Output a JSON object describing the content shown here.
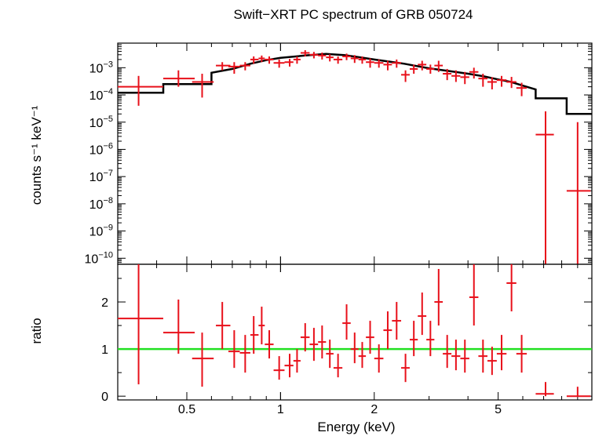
{
  "chart_data": {
    "title": "Swift−XRT PC spectrum of GRB 050724",
    "x_axis": {
      "label": "Energy (keV)",
      "scale": "log",
      "range": [
        0.3,
        10.0
      ],
      "ticks": [
        {
          "value": 0.5,
          "label": "0.5"
        },
        {
          "value": 1,
          "label": "1"
        },
        {
          "value": 2,
          "label": "2"
        },
        {
          "value": 5,
          "label": "5"
        }
      ]
    },
    "panels": [
      {
        "id": "spectrum",
        "type": "scatter",
        "ylabel": "counts s⁻¹ keV⁻¹",
        "yscale": "log",
        "ylim": [
          6e-11,
          0.008
        ],
        "yticks": [
          {
            "value": 0.001,
            "base": "10",
            "exp": "−3"
          },
          {
            "value": 0.0001,
            "base": "10",
            "exp": "−4"
          },
          {
            "value": 1e-05,
            "base": "10",
            "exp": "−5"
          },
          {
            "value": 1e-06,
            "base": "10",
            "exp": "−6"
          },
          {
            "value": 1e-07,
            "base": "10",
            "exp": "−7"
          },
          {
            "value": 1e-08,
            "base": "10",
            "exp": "−8"
          },
          {
            "value": 1e-09,
            "base": "10",
            "exp": "−9"
          },
          {
            "value": 1e-10,
            "base": "10",
            "exp": "−10"
          }
        ],
        "data_color": "#e8101a",
        "model_color": "#000000",
        "data": [
          {
            "x": 0.35,
            "xlo": 0.3,
            "xhi": 0.42,
            "y": 0.0002,
            "ylo": 4e-05,
            "yhi": 0.0005
          },
          {
            "x": 0.47,
            "xlo": 0.42,
            "xhi": 0.53,
            "y": 0.0004,
            "ylo": 0.0002,
            "yhi": 0.0008
          },
          {
            "x": 0.56,
            "xlo": 0.52,
            "xhi": 0.61,
            "y": 0.0003,
            "ylo": 8e-05,
            "yhi": 0.0006
          },
          {
            "x": 0.65,
            "xlo": 0.62,
            "xhi": 0.69,
            "y": 0.0012,
            "ylo": 0.0008,
            "yhi": 0.0016
          },
          {
            "x": 0.71,
            "xlo": 0.68,
            "xhi": 0.74,
            "y": 0.0011,
            "ylo": 0.0006,
            "yhi": 0.0016
          },
          {
            "x": 0.77,
            "xlo": 0.74,
            "xhi": 0.8,
            "y": 0.0012,
            "ylo": 0.0008,
            "yhi": 0.0016
          },
          {
            "x": 0.82,
            "xlo": 0.8,
            "xhi": 0.85,
            "y": 0.002,
            "ylo": 0.0014,
            "yhi": 0.0026
          },
          {
            "x": 0.87,
            "xlo": 0.85,
            "xhi": 0.89,
            "y": 0.0022,
            "ylo": 0.0016,
            "yhi": 0.0028
          },
          {
            "x": 0.92,
            "xlo": 0.89,
            "xhi": 0.95,
            "y": 0.002,
            "ylo": 0.0014,
            "yhi": 0.0026
          },
          {
            "x": 0.99,
            "xlo": 0.95,
            "xhi": 1.03,
            "y": 0.0015,
            "ylo": 0.001,
            "yhi": 0.002
          },
          {
            "x": 1.07,
            "xlo": 1.03,
            "xhi": 1.1,
            "y": 0.0016,
            "ylo": 0.0011,
            "yhi": 0.0021
          },
          {
            "x": 1.13,
            "xlo": 1.1,
            "xhi": 1.16,
            "y": 0.002,
            "ylo": 0.0014,
            "yhi": 0.0026
          },
          {
            "x": 1.2,
            "xlo": 1.16,
            "xhi": 1.24,
            "y": 0.0035,
            "ylo": 0.0026,
            "yhi": 0.0044
          },
          {
            "x": 1.28,
            "xlo": 1.24,
            "xhi": 1.32,
            "y": 0.003,
            "ylo": 0.0022,
            "yhi": 0.0038
          },
          {
            "x": 1.36,
            "xlo": 1.32,
            "xhi": 1.4,
            "y": 0.0028,
            "ylo": 0.002,
            "yhi": 0.0036
          },
          {
            "x": 1.44,
            "xlo": 1.4,
            "xhi": 1.48,
            "y": 0.0024,
            "ylo": 0.0017,
            "yhi": 0.0031
          },
          {
            "x": 1.53,
            "xlo": 1.48,
            "xhi": 1.58,
            "y": 0.002,
            "ylo": 0.0014,
            "yhi": 0.0026
          },
          {
            "x": 1.63,
            "xlo": 1.58,
            "xhi": 1.68,
            "y": 0.0026,
            "ylo": 0.0019,
            "yhi": 0.0033
          },
          {
            "x": 1.73,
            "xlo": 1.68,
            "xhi": 1.78,
            "y": 0.0022,
            "ylo": 0.0015,
            "yhi": 0.0029
          },
          {
            "x": 1.83,
            "xlo": 1.78,
            "xhi": 1.88,
            "y": 0.002,
            "ylo": 0.0014,
            "yhi": 0.0026
          },
          {
            "x": 1.94,
            "xlo": 1.88,
            "xhi": 2.0,
            "y": 0.0016,
            "ylo": 0.001,
            "yhi": 0.0022
          },
          {
            "x": 2.07,
            "xlo": 2.0,
            "xhi": 2.14,
            "y": 0.0015,
            "ylo": 0.001,
            "yhi": 0.002
          },
          {
            "x": 2.21,
            "xlo": 2.14,
            "xhi": 2.28,
            "y": 0.0013,
            "ylo": 0.0008,
            "yhi": 0.0018
          },
          {
            "x": 2.36,
            "xlo": 2.28,
            "xhi": 2.44,
            "y": 0.0015,
            "ylo": 0.001,
            "yhi": 0.002
          },
          {
            "x": 2.52,
            "xlo": 2.44,
            "xhi": 2.6,
            "y": 0.00055,
            "ylo": 0.0003,
            "yhi": 0.0008
          },
          {
            "x": 2.68,
            "xlo": 2.6,
            "xhi": 2.76,
            "y": 0.0009,
            "ylo": 0.0006,
            "yhi": 0.0013
          },
          {
            "x": 2.85,
            "xlo": 2.76,
            "xhi": 2.94,
            "y": 0.0013,
            "ylo": 0.0008,
            "yhi": 0.0018
          },
          {
            "x": 3.03,
            "xlo": 2.94,
            "xhi": 3.12,
            "y": 0.0009,
            "ylo": 0.0006,
            "yhi": 0.0013
          },
          {
            "x": 3.22,
            "xlo": 3.12,
            "xhi": 3.32,
            "y": 0.0012,
            "ylo": 0.0007,
            "yhi": 0.0018
          },
          {
            "x": 3.43,
            "xlo": 3.32,
            "xhi": 3.54,
            "y": 0.0006,
            "ylo": 0.00035,
            "yhi": 0.0009
          },
          {
            "x": 3.66,
            "xlo": 3.54,
            "xhi": 3.78,
            "y": 0.0005,
            "ylo": 0.0003,
            "yhi": 0.0008
          },
          {
            "x": 3.91,
            "xlo": 3.78,
            "xhi": 4.04,
            "y": 0.00045,
            "ylo": 0.00025,
            "yhi": 0.0007
          },
          {
            "x": 4.18,
            "xlo": 4.04,
            "xhi": 4.32,
            "y": 0.0007,
            "ylo": 0.0004,
            "yhi": 0.001
          },
          {
            "x": 4.47,
            "xlo": 4.32,
            "xhi": 4.62,
            "y": 0.0004,
            "ylo": 0.0002,
            "yhi": 0.0006
          },
          {
            "x": 4.78,
            "xlo": 4.62,
            "xhi": 4.95,
            "y": 0.0003,
            "ylo": 0.00016,
            "yhi": 0.00045
          },
          {
            "x": 5.13,
            "xlo": 4.95,
            "xhi": 5.32,
            "y": 0.00035,
            "ylo": 0.0002,
            "yhi": 0.0005
          },
          {
            "x": 5.52,
            "xlo": 5.32,
            "xhi": 5.72,
            "y": 0.0003,
            "ylo": 0.00018,
            "yhi": 0.00046
          },
          {
            "x": 5.95,
            "xlo": 5.72,
            "xhi": 6.18,
            "y": 0.00018,
            "ylo": 9e-05,
            "yhi": 0.00028
          },
          {
            "x": 7.1,
            "xlo": 6.6,
            "xhi": 7.55,
            "y": 3.5e-06,
            "ylo": 6e-11,
            "yhi": 2.5e-05
          },
          {
            "x": 9.0,
            "xlo": 8.3,
            "xhi": 9.9,
            "y": 3e-08,
            "ylo": 6e-11,
            "yhi": 1e-05
          }
        ],
        "model": [
          [
            0.3,
            0.00012
          ],
          [
            0.42,
            0.00012
          ],
          [
            0.42,
            0.00025
          ],
          [
            0.6,
            0.00025
          ],
          [
            0.6,
            0.00065
          ],
          [
            0.7,
            0.0009
          ],
          [
            0.8,
            0.0014
          ],
          [
            0.9,
            0.0019
          ],
          [
            1.0,
            0.0023
          ],
          [
            1.2,
            0.0028
          ],
          [
            1.4,
            0.0032
          ],
          [
            1.6,
            0.0029
          ],
          [
            1.8,
            0.0024
          ],
          [
            2.0,
            0.002
          ],
          [
            2.5,
            0.0014
          ],
          [
            3.0,
            0.00095
          ],
          [
            3.5,
            0.00075
          ],
          [
            4.0,
            0.0006
          ],
          [
            4.5,
            0.00048
          ],
          [
            5.0,
            0.00037
          ],
          [
            5.5,
            0.0003
          ],
          [
            6.0,
            0.00022
          ],
          [
            6.6,
            0.00016
          ],
          [
            6.6,
            7.5e-05
          ],
          [
            8.3,
            7.5e-05
          ],
          [
            8.3,
            2e-05
          ],
          [
            10.0,
            2e-05
          ]
        ]
      },
      {
        "id": "ratio",
        "type": "scatter",
        "ylabel": "ratio",
        "yscale": "linear",
        "ylim": [
          -0.08,
          2.8
        ],
        "yticks": [
          {
            "value": 0,
            "label": "0"
          },
          {
            "value": 1,
            "label": "1"
          },
          {
            "value": 2,
            "label": "2"
          }
        ],
        "data_color": "#e8101a",
        "reference_line": {
          "y": 1,
          "color": "#22e022"
        },
        "data": [
          {
            "x": 0.35,
            "xlo": 0.3,
            "xhi": 0.42,
            "y": 1.65,
            "ylo": 0.25,
            "yhi": 2.8
          },
          {
            "x": 0.47,
            "xlo": 0.42,
            "xhi": 0.53,
            "y": 1.35,
            "ylo": 0.9,
            "yhi": 2.05
          },
          {
            "x": 0.56,
            "xlo": 0.52,
            "xhi": 0.61,
            "y": 0.8,
            "ylo": 0.2,
            "yhi": 1.35
          },
          {
            "x": 0.65,
            "xlo": 0.62,
            "xhi": 0.69,
            "y": 1.5,
            "ylo": 1.0,
            "yhi": 2.0
          },
          {
            "x": 0.71,
            "xlo": 0.68,
            "xhi": 0.74,
            "y": 0.95,
            "ylo": 0.6,
            "yhi": 1.4
          },
          {
            "x": 0.77,
            "xlo": 0.74,
            "xhi": 0.8,
            "y": 0.92,
            "ylo": 0.5,
            "yhi": 1.3
          },
          {
            "x": 0.82,
            "xlo": 0.8,
            "xhi": 0.85,
            "y": 1.3,
            "ylo": 0.9,
            "yhi": 1.7
          },
          {
            "x": 0.87,
            "xlo": 0.85,
            "xhi": 0.89,
            "y": 1.5,
            "ylo": 1.1,
            "yhi": 1.9
          },
          {
            "x": 0.92,
            "xlo": 0.89,
            "xhi": 0.95,
            "y": 1.1,
            "ylo": 0.8,
            "yhi": 1.4
          },
          {
            "x": 0.99,
            "xlo": 0.95,
            "xhi": 1.03,
            "y": 0.55,
            "ylo": 0.35,
            "yhi": 0.85
          },
          {
            "x": 1.07,
            "xlo": 1.03,
            "xhi": 1.1,
            "y": 0.65,
            "ylo": 0.4,
            "yhi": 0.9
          },
          {
            "x": 1.13,
            "xlo": 1.1,
            "xhi": 1.16,
            "y": 0.75,
            "ylo": 0.5,
            "yhi": 1.0
          },
          {
            "x": 1.2,
            "xlo": 1.16,
            "xhi": 1.24,
            "y": 1.25,
            "ylo": 0.95,
            "yhi": 1.55
          },
          {
            "x": 1.28,
            "xlo": 1.24,
            "xhi": 1.32,
            "y": 1.1,
            "ylo": 0.75,
            "yhi": 1.45
          },
          {
            "x": 1.36,
            "xlo": 1.32,
            "xhi": 1.4,
            "y": 1.15,
            "ylo": 0.8,
            "yhi": 1.5
          },
          {
            "x": 1.44,
            "xlo": 1.4,
            "xhi": 1.48,
            "y": 0.9,
            "ylo": 0.6,
            "yhi": 1.2
          },
          {
            "x": 1.53,
            "xlo": 1.48,
            "xhi": 1.58,
            "y": 0.6,
            "ylo": 0.4,
            "yhi": 0.9
          },
          {
            "x": 1.63,
            "xlo": 1.58,
            "xhi": 1.68,
            "y": 1.55,
            "ylo": 1.2,
            "yhi": 1.95
          },
          {
            "x": 1.73,
            "xlo": 1.68,
            "xhi": 1.78,
            "y": 1.0,
            "ylo": 0.7,
            "yhi": 1.35
          },
          {
            "x": 1.83,
            "xlo": 1.78,
            "xhi": 1.88,
            "y": 0.85,
            "ylo": 0.6,
            "yhi": 1.15
          },
          {
            "x": 1.94,
            "xlo": 1.88,
            "xhi": 2.0,
            "y": 1.25,
            "ylo": 0.9,
            "yhi": 1.6
          },
          {
            "x": 2.07,
            "xlo": 2.0,
            "xhi": 2.14,
            "y": 0.8,
            "ylo": 0.5,
            "yhi": 1.1
          },
          {
            "x": 2.21,
            "xlo": 2.14,
            "xhi": 2.28,
            "y": 1.4,
            "ylo": 1.0,
            "yhi": 1.8
          },
          {
            "x": 2.36,
            "xlo": 2.28,
            "xhi": 2.44,
            "y": 1.6,
            "ylo": 1.2,
            "yhi": 2.0
          },
          {
            "x": 2.52,
            "xlo": 2.44,
            "xhi": 2.6,
            "y": 0.6,
            "ylo": 0.3,
            "yhi": 0.9
          },
          {
            "x": 2.68,
            "xlo": 2.6,
            "xhi": 2.76,
            "y": 1.2,
            "ylo": 0.85,
            "yhi": 1.6
          },
          {
            "x": 2.85,
            "xlo": 2.76,
            "xhi": 2.94,
            "y": 1.7,
            "ylo": 1.3,
            "yhi": 2.2
          },
          {
            "x": 3.03,
            "xlo": 2.94,
            "xhi": 3.12,
            "y": 1.2,
            "ylo": 0.85,
            "yhi": 1.6
          },
          {
            "x": 3.22,
            "xlo": 3.12,
            "xhi": 3.32,
            "y": 2.0,
            "ylo": 1.5,
            "yhi": 2.7
          },
          {
            "x": 3.43,
            "xlo": 3.32,
            "xhi": 3.54,
            "y": 0.9,
            "ylo": 0.6,
            "yhi": 1.3
          },
          {
            "x": 3.66,
            "xlo": 3.54,
            "xhi": 3.78,
            "y": 0.85,
            "ylo": 0.55,
            "yhi": 1.2
          },
          {
            "x": 3.91,
            "xlo": 3.78,
            "xhi": 4.04,
            "y": 0.8,
            "ylo": 0.5,
            "yhi": 1.2
          },
          {
            "x": 4.18,
            "xlo": 4.04,
            "xhi": 4.32,
            "y": 2.1,
            "ylo": 1.5,
            "yhi": 2.8
          },
          {
            "x": 4.47,
            "xlo": 4.32,
            "xhi": 4.62,
            "y": 0.85,
            "ylo": 0.5,
            "yhi": 1.2
          },
          {
            "x": 4.78,
            "xlo": 4.62,
            "xhi": 4.95,
            "y": 0.75,
            "ylo": 0.45,
            "yhi": 1.05
          },
          {
            "x": 5.13,
            "xlo": 4.95,
            "xhi": 5.32,
            "y": 0.9,
            "ylo": 0.55,
            "yhi": 1.3
          },
          {
            "x": 5.52,
            "xlo": 5.32,
            "xhi": 5.72,
            "y": 2.4,
            "ylo": 1.8,
            "yhi": 2.8
          },
          {
            "x": 5.95,
            "xlo": 5.72,
            "xhi": 6.18,
            "y": 0.9,
            "ylo": 0.5,
            "yhi": 1.3
          },
          {
            "x": 7.1,
            "xlo": 6.6,
            "xhi": 7.55,
            "y": 0.05,
            "ylo": 0.0,
            "yhi": 0.3
          },
          {
            "x": 9.0,
            "xlo": 8.3,
            "xhi": 9.9,
            "y": 0.0,
            "ylo": 0.0,
            "yhi": 0.2
          }
        ]
      }
    ]
  }
}
